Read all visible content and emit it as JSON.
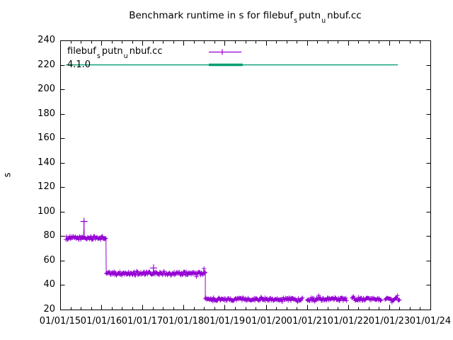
{
  "colors": {
    "background": "#ffffff",
    "border": "#000000",
    "text": "#000000",
    "series_benchmark": "#9400d3",
    "series_version": "#009e73"
  },
  "title": {
    "plain": "Benchmark runtime in s for filebuf_sputn_unbuf.cc",
    "parts": [
      {
        "text": "Benchmark runtime in s for filebuf"
      },
      {
        "text": "s",
        "sub": true
      },
      {
        "text": "putn"
      },
      {
        "text": "u",
        "sub": true
      },
      {
        "text": "nbuf.cc"
      }
    ]
  },
  "legend": {
    "entries": [
      {
        "plain": "filebuf_sputn_unbuf.cc",
        "label_parts": [
          {
            "text": "filebuf"
          },
          {
            "text": "s",
            "sub": true
          },
          {
            "text": "putn"
          },
          {
            "text": "u",
            "sub": true
          },
          {
            "text": "nbuf.cc"
          }
        ],
        "color": "#9400d3",
        "sample": "line-with-plus-marker"
      },
      {
        "plain": "4.1.0",
        "label_parts": [
          {
            "text": "4.1.0"
          }
        ],
        "color": "#009e73",
        "sample": "thick-line"
      }
    ]
  },
  "y_axis": {
    "label": "s",
    "tick_labels": [
      "20",
      "40",
      "60",
      "80",
      "100",
      "120",
      "140",
      "160",
      "180",
      "200",
      "220",
      "240"
    ]
  },
  "x_axis": {
    "tick_labels": [
      "01/01/15",
      "01/01/16",
      "01/01/17",
      "01/01/18",
      "01/01/19",
      "01/01/20",
      "01/01/21",
      "01/01/22",
      "01/01/23",
      "01/01/24"
    ],
    "minor_ticks_per_interval": 3
  },
  "chart_data": {
    "type": "scatter",
    "title": "Benchmark runtime in s for filebuf_sputn_unbuf.cc",
    "xlabel": "",
    "ylabel": "s",
    "ylim": [
      20,
      240
    ],
    "ytick_step": 20,
    "x_range_years": [
      2015,
      2024
    ],
    "x_tick_labels": [
      "01/01/15",
      "01/01/16",
      "01/01/17",
      "01/01/18",
      "01/01/19",
      "01/01/20",
      "01/01/21",
      "01/01/22",
      "01/01/23",
      "01/01/24"
    ],
    "grid": false,
    "legend_position": "top-left-inside",
    "series": [
      {
        "name": "filebuf_sputn_unbuf.cc",
        "color": "#9400d3",
        "style": "linespoints-plus",
        "steps": [
          {
            "x_start": 2015.14,
            "x_end": 2016.12,
            "runtime_s": 78.5,
            "spread": 1.5
          },
          {
            "x_start": 2016.12,
            "x_end": 2018.53,
            "runtime_s": 49.5,
            "spread": 1.5
          },
          {
            "x_start": 2018.53,
            "x_end": 2023.26,
            "runtime_s": 28.5,
            "spread": 1.3,
            "gaps": [
              [
                2020.9,
                2020.99
              ],
              [
                2021.97,
                2022.09
              ],
              [
                2022.81,
                2022.9
              ]
            ]
          }
        ],
        "outliers": [
          {
            "x": 2015.58,
            "runtime_s": 92
          },
          {
            "x": 2017.27,
            "runtime_s": 54
          }
        ]
      },
      {
        "name": "4.1.0",
        "color": "#009e73",
        "style": "horizontal-line",
        "constant_value": 220,
        "x_start": 2015.14,
        "x_end": 2023.21
      }
    ]
  }
}
